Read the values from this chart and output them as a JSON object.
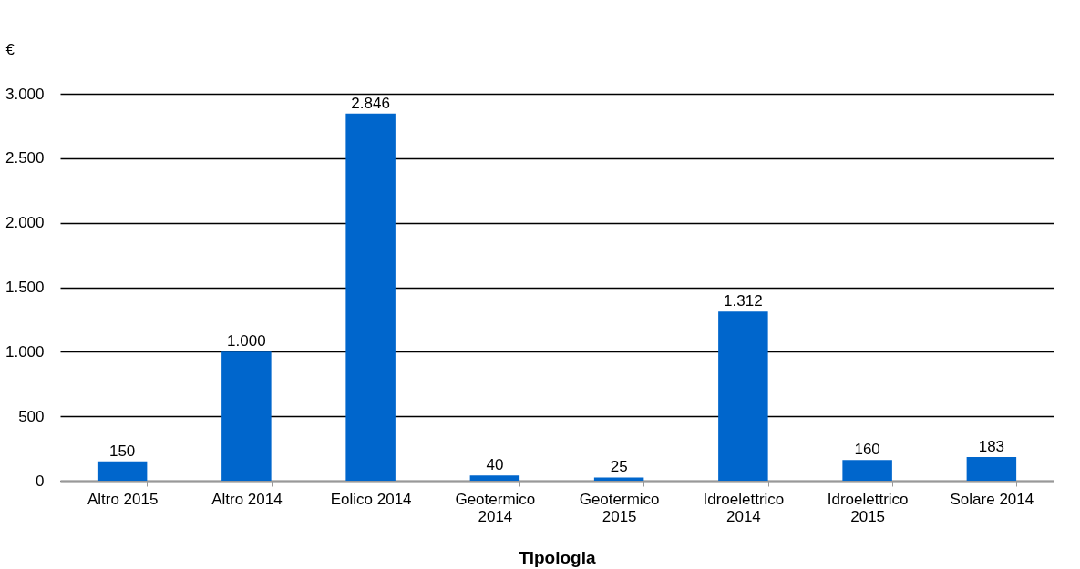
{
  "chart_data": {
    "type": "bar",
    "xlabel": "Tipologia",
    "ylabel": "€",
    "categories": [
      "Altro 2015",
      "Altro 2014",
      "Eolico 2014",
      "Geotermico 2014",
      "Geotermico 2015",
      "Idroelettrico 2014",
      "Idroelettrico 2015",
      "Solare 2014"
    ],
    "values": [
      150,
      1000,
      2846,
      40,
      25,
      1312,
      160,
      183
    ],
    "value_labels": [
      "150",
      "1.000",
      "2.846",
      "40",
      "25",
      "1.312",
      "160",
      "183"
    ],
    "color": "#0066cc",
    "ylim": [
      0,
      3000
    ],
    "yticks": [
      0,
      {
        "value": 500,
        "label": "500"
      },
      {
        "value": 1000,
        "label": "1.000"
      },
      {
        "value": 1500,
        "label": "1.500"
      },
      {
        "value": 2000,
        "label": "2.000"
      },
      {
        "value": 2500,
        "label": "2.500"
      },
      {
        "value": 3000,
        "label": "3.000"
      }
    ],
    "grid": "y"
  }
}
